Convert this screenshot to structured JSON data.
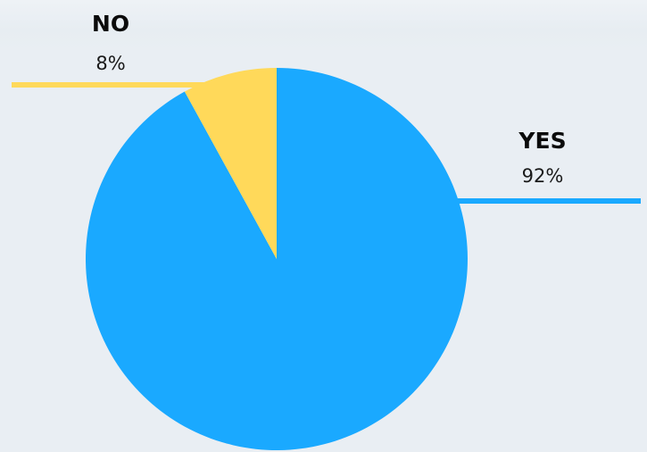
{
  "chart_data": {
    "type": "pie",
    "slices": [
      {
        "label": "YES",
        "value": 92,
        "value_label": "92%",
        "color": "#1aa9ff"
      },
      {
        "label": "NO",
        "value": 8,
        "value_label": "8%",
        "color": "#ffd95a"
      }
    ]
  }
}
